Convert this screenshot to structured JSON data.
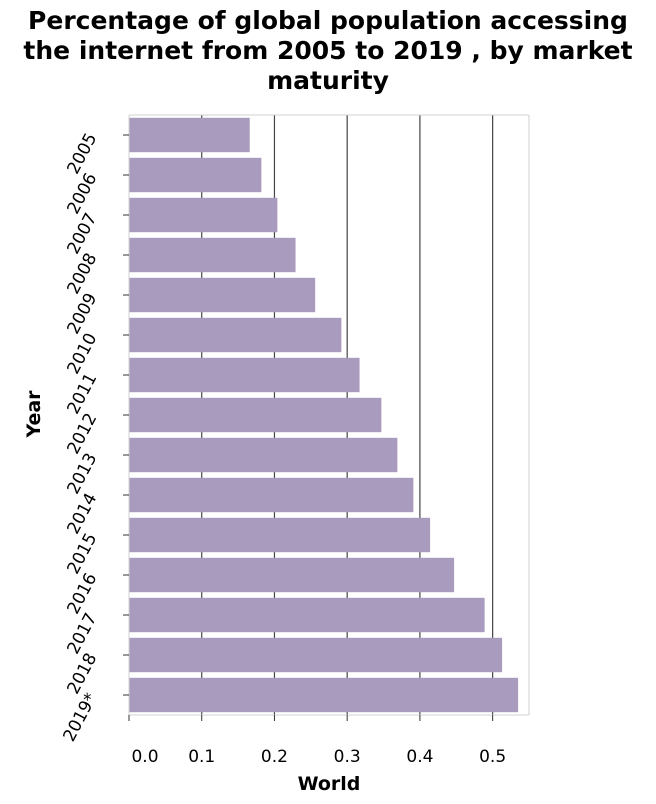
{
  "chart_data": {
    "type": "bar",
    "orientation": "horizontal",
    "title_lines": [
      "Percentage of global population accessing",
      "the internet from 2005 to 2019 , by market",
      "maturity"
    ],
    "xlabel": "World",
    "ylabel": "Year",
    "categories": [
      "2005",
      "2006",
      "2007",
      "2008",
      "2009",
      "2010",
      "2011",
      "2012",
      "2013",
      "2014",
      "2015",
      "2016",
      "2017",
      "2018",
      "2019*"
    ],
    "values": [
      0.166,
      0.182,
      0.204,
      0.229,
      0.256,
      0.292,
      0.317,
      0.347,
      0.369,
      0.391,
      0.414,
      0.447,
      0.489,
      0.513,
      0.535
    ],
    "xlim": [
      0,
      0.55
    ],
    "xticks": [
      0.0,
      0.1,
      0.2,
      0.3,
      0.4,
      0.5
    ],
    "xtick_labels": [
      "0.0",
      "0.1",
      "0.2",
      "0.3",
      "0.4",
      "0.5"
    ],
    "bar_color": "#a99bbd",
    "grid": "vertical"
  }
}
